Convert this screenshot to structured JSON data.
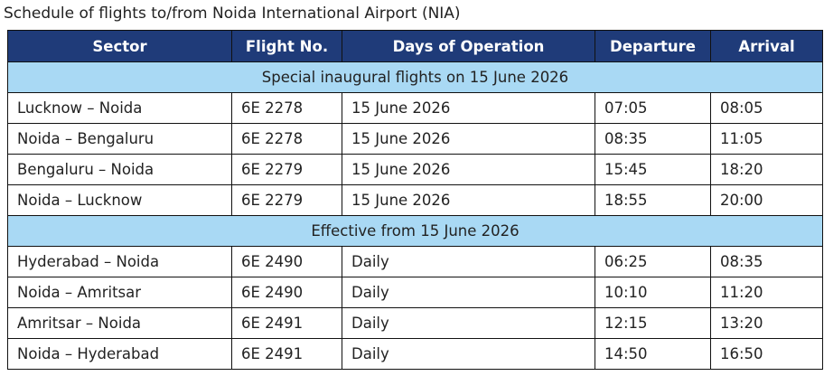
{
  "header": {
    "title": "Schedule of flights to/from Noida International Airport (NIA)"
  },
  "table": {
    "columns": [
      "Sector",
      "Flight No.",
      "Days of Operation",
      "Departure",
      "Arrival"
    ],
    "sections": [
      {
        "heading": "Special inaugural flights on 15 June 2026",
        "rows": [
          [
            "Lucknow – Noida",
            "6E 2278",
            "15 June 2026",
            "07:05",
            "08:05"
          ],
          [
            "Noida – Bengaluru",
            "6E 2278",
            "15 June 2026",
            "08:35",
            "11:05"
          ],
          [
            "Bengaluru – Noida",
            "6E 2279",
            "15 June 2026",
            "15:45",
            "18:20"
          ],
          [
            "Noida – Lucknow",
            "6E 2279",
            "15 June 2026",
            "18:55",
            "20:00"
          ]
        ]
      },
      {
        "heading": "Effective from 15 June 2026",
        "rows": [
          [
            "Hyderabad – Noida",
            "6E 2490",
            "Daily",
            "06:25",
            "08:35"
          ],
          [
            "Noida – Amritsar",
            "6E 2490",
            "Daily",
            "10:10",
            "11:20"
          ],
          [
            "Amritsar – Noida",
            "6E 2491",
            "Daily",
            "12:15",
            "13:20"
          ],
          [
            "Noida – Hyderabad",
            "6E 2491",
            "Daily",
            "14:50",
            "16:50"
          ]
        ]
      }
    ]
  }
}
